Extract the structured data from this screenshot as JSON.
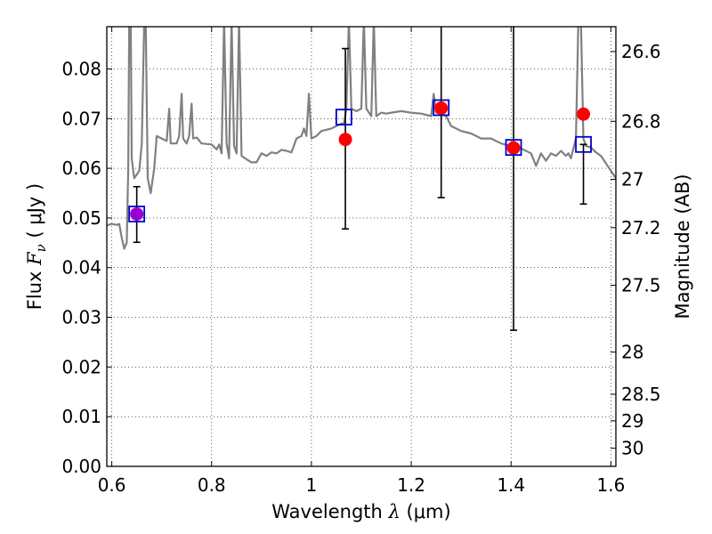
{
  "chart_data": {
    "type": "scatter",
    "xlabel": {
      "pre": "Wavelength  ",
      "sym": "λ",
      "post": " (μm)"
    },
    "ylabel": {
      "pre": "Flux  ",
      "sym": "F",
      "sub": "ν",
      "post": "  ( μJy )"
    },
    "y2label": "Magnitude (AB)",
    "xlim": [
      0.59,
      1.61
    ],
    "ylim": [
      0.0,
      0.0885
    ],
    "grid": true,
    "x_ticks": [
      {
        "value": 0.6,
        "label": "0.6"
      },
      {
        "value": 0.8,
        "label": "0.8"
      },
      {
        "value": 1.0,
        "label": "1"
      },
      {
        "value": 1.2,
        "label": "1.2"
      },
      {
        "value": 1.4,
        "label": "1.4"
      },
      {
        "value": 1.6,
        "label": "1.6"
      }
    ],
    "y_ticks": [
      {
        "value": 0.0,
        "label": "0.00"
      },
      {
        "value": 0.01,
        "label": "0.01"
      },
      {
        "value": 0.02,
        "label": "0.02"
      },
      {
        "value": 0.03,
        "label": "0.03"
      },
      {
        "value": 0.04,
        "label": "0.04"
      },
      {
        "value": 0.05,
        "label": "0.05"
      },
      {
        "value": 0.06,
        "label": "0.06"
      },
      {
        "value": 0.07,
        "label": "0.07"
      },
      {
        "value": 0.08,
        "label": "0.08"
      }
    ],
    "mag_ticks": [
      {
        "mag": 26.6,
        "label": "26.6"
      },
      {
        "mag": 26.8,
        "label": "26.8"
      },
      {
        "mag": 27.0,
        "label": "27"
      },
      {
        "mag": 27.2,
        "label": "27.2"
      },
      {
        "mag": 27.5,
        "label": "27.5"
      },
      {
        "mag": 28.0,
        "label": "28"
      },
      {
        "mag": 28.5,
        "label": "28.5"
      },
      {
        "mag": 29.0,
        "label": "29"
      },
      {
        "mag": 30.0,
        "label": "30"
      }
    ],
    "sed_model": {
      "color": "#808080",
      "points": [
        [
          0.59,
          0.0485
        ],
        [
          0.6,
          0.0488
        ],
        [
          0.61,
          0.0486
        ],
        [
          0.615,
          0.0488
        ],
        [
          0.62,
          0.046
        ],
        [
          0.625,
          0.0438
        ],
        [
          0.63,
          0.045
        ],
        [
          0.633,
          0.06
        ],
        [
          0.635,
          0.09
        ],
        [
          0.638,
          0.09
        ],
        [
          0.64,
          0.062
        ],
        [
          0.645,
          0.058
        ],
        [
          0.655,
          0.0595
        ],
        [
          0.66,
          0.065
        ],
        [
          0.665,
          0.09
        ],
        [
          0.668,
          0.09
        ],
        [
          0.672,
          0.058
        ],
        [
          0.678,
          0.055
        ],
        [
          0.685,
          0.06
        ],
        [
          0.69,
          0.0665
        ],
        [
          0.7,
          0.066
        ],
        [
          0.71,
          0.0655
        ],
        [
          0.715,
          0.072
        ],
        [
          0.718,
          0.065
        ],
        [
          0.73,
          0.065
        ],
        [
          0.735,
          0.0665
        ],
        [
          0.74,
          0.075
        ],
        [
          0.743,
          0.066
        ],
        [
          0.75,
          0.065
        ],
        [
          0.755,
          0.0665
        ],
        [
          0.76,
          0.073
        ],
        [
          0.763,
          0.066
        ],
        [
          0.77,
          0.0662
        ],
        [
          0.78,
          0.065
        ],
        [
          0.8,
          0.0648
        ],
        [
          0.81,
          0.0638
        ],
        [
          0.815,
          0.0648
        ],
        [
          0.82,
          0.063
        ],
        [
          0.825,
          0.09
        ],
        [
          0.83,
          0.065
        ],
        [
          0.835,
          0.062
        ],
        [
          0.84,
          0.09
        ],
        [
          0.845,
          0.0645
        ],
        [
          0.85,
          0.063
        ],
        [
          0.855,
          0.09
        ],
        [
          0.86,
          0.0625
        ],
        [
          0.87,
          0.0618
        ],
        [
          0.88,
          0.0612
        ],
        [
          0.89,
          0.0612
        ],
        [
          0.9,
          0.063
        ],
        [
          0.91,
          0.0625
        ],
        [
          0.92,
          0.0632
        ],
        [
          0.93,
          0.063
        ],
        [
          0.94,
          0.0637
        ],
        [
          0.95,
          0.0635
        ],
        [
          0.96,
          0.0632
        ],
        [
          0.97,
          0.066
        ],
        [
          0.98,
          0.0665
        ],
        [
          0.985,
          0.068
        ],
        [
          0.99,
          0.0665
        ],
        [
          0.995,
          0.075
        ],
        [
          1.0,
          0.066
        ],
        [
          1.01,
          0.0665
        ],
        [
          1.02,
          0.0675
        ],
        [
          1.04,
          0.068
        ],
        [
          1.05,
          0.0685
        ],
        [
          1.06,
          0.069
        ],
        [
          1.065,
          0.069
        ],
        [
          1.07,
          0.072
        ],
        [
          1.075,
          0.09
        ],
        [
          1.08,
          0.072
        ],
        [
          1.09,
          0.0715
        ],
        [
          1.1,
          0.072
        ],
        [
          1.105,
          0.09
        ],
        [
          1.11,
          0.072
        ],
        [
          1.12,
          0.0705
        ],
        [
          1.125,
          0.09
        ],
        [
          1.13,
          0.0705
        ],
        [
          1.14,
          0.0712
        ],
        [
          1.15,
          0.071
        ],
        [
          1.16,
          0.0712
        ],
        [
          1.18,
          0.0715
        ],
        [
          1.2,
          0.0712
        ],
        [
          1.22,
          0.071
        ],
        [
          1.24,
          0.0705
        ],
        [
          1.245,
          0.075
        ],
        [
          1.25,
          0.0712
        ],
        [
          1.26,
          0.071
        ],
        [
          1.27,
          0.0705
        ],
        [
          1.28,
          0.0685
        ],
        [
          1.3,
          0.0675
        ],
        [
          1.32,
          0.067
        ],
        [
          1.34,
          0.066
        ],
        [
          1.36,
          0.066
        ],
        [
          1.38,
          0.065
        ],
        [
          1.4,
          0.0645
        ],
        [
          1.42,
          0.064
        ],
        [
          1.44,
          0.063
        ],
        [
          1.45,
          0.0605
        ],
        [
          1.46,
          0.063
        ],
        [
          1.47,
          0.0615
        ],
        [
          1.48,
          0.063
        ],
        [
          1.49,
          0.0625
        ],
        [
          1.5,
          0.0635
        ],
        [
          1.51,
          0.0625
        ],
        [
          1.515,
          0.063
        ],
        [
          1.52,
          0.062
        ],
        [
          1.53,
          0.066
        ],
        [
          1.535,
          0.09
        ],
        [
          1.54,
          0.09
        ],
        [
          1.545,
          0.066
        ],
        [
          1.55,
          0.0645
        ],
        [
          1.56,
          0.0642
        ],
        [
          1.57,
          0.0632
        ],
        [
          1.58,
          0.0625
        ],
        [
          1.59,
          0.061
        ],
        [
          1.6,
          0.0595
        ],
        [
          1.61,
          0.058
        ]
      ]
    },
    "series": [
      {
        "marker": "square",
        "color": "#0000cc",
        "points": [
          {
            "x": 0.65,
            "y": 0.0508
          },
          {
            "x": 1.065,
            "y": 0.0703
          },
          {
            "x": 1.26,
            "y": 0.0722
          },
          {
            "x": 1.405,
            "y": 0.0642
          },
          {
            "x": 1.545,
            "y": 0.0648
          }
        ]
      },
      {
        "marker": "circle",
        "color": "#ff0000",
        "points": [
          {
            "x": 0.65,
            "y": 0.0508,
            "yerr_low": 0.0451,
            "yerr_high": 0.0563,
            "color": "#9900cc"
          },
          {
            "x": 1.068,
            "y": 0.0658,
            "yerr_low": 0.0478,
            "yerr_high": 0.0841
          },
          {
            "x": 1.26,
            "y": 0.0721,
            "yerr_low": 0.0541,
            "yerr_high": 0.09
          },
          {
            "x": 1.405,
            "y": 0.0641,
            "yerr_low": 0.0274,
            "yerr_high": 0.09
          },
          {
            "x": 1.545,
            "y": 0.0709,
            "yerr_low": 0.0528,
            "yerr_high": 0.0648
          }
        ]
      }
    ]
  }
}
